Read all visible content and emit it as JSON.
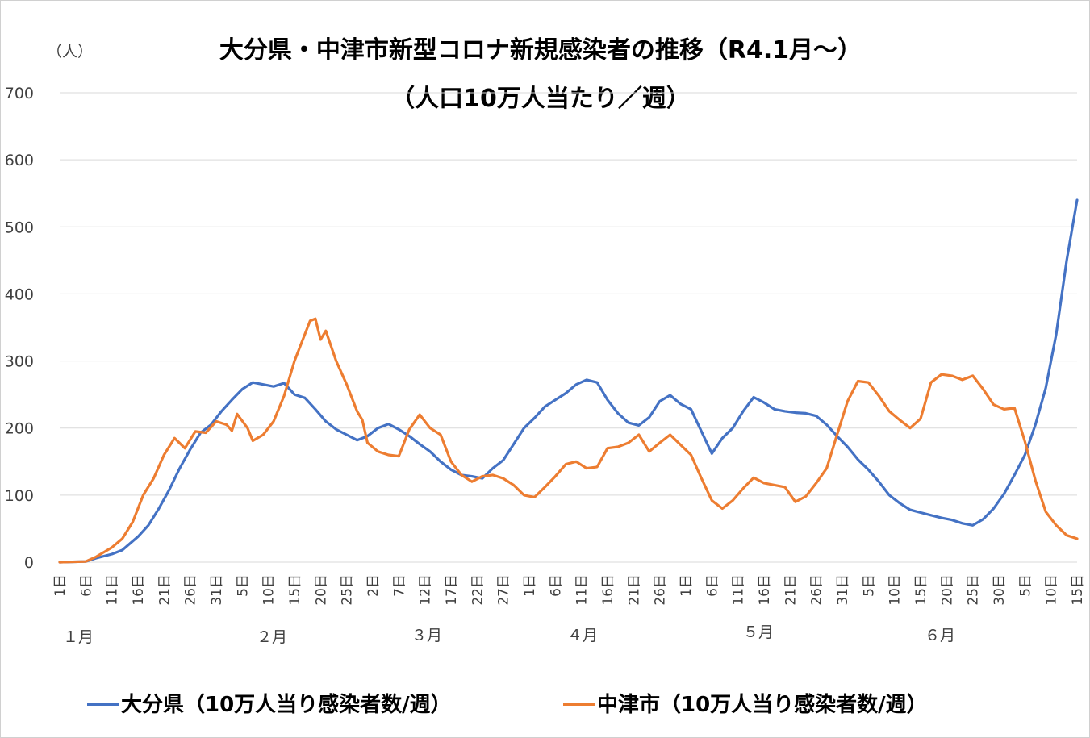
{
  "chart_data": {
    "type": "line",
    "title": "大分県・中津市新型コロナ新規感染者の推移（R4.1月～）",
    "subtitle": "（人口10万人当たり／週）",
    "ylabel": "（人）",
    "xlabel": "",
    "ylim": [
      0,
      700
    ],
    "yticks": [
      "0",
      "100",
      "200",
      "300",
      "400",
      "500",
      "600",
      "700"
    ],
    "xtick_labels": [
      "1日",
      "6日",
      "11日",
      "16日",
      "21日",
      "26日",
      "31日",
      "5日",
      "10日",
      "15日",
      "20日",
      "25日",
      "2日",
      "7日",
      "12日",
      "17日",
      "22日",
      "27日",
      "1日",
      "6日",
      "11日",
      "16日",
      "21日",
      "26日",
      "1日",
      "6日",
      "11日",
      "16日",
      "21日",
      "26日",
      "31日",
      "5日",
      "10日",
      "15日",
      "20日",
      "25日",
      "30日",
      "5日",
      "10日",
      "15日"
    ],
    "month_labels": [
      "１月",
      "２月",
      "３月",
      "４月",
      "５月",
      "６月"
    ],
    "x_start": "2022-01-01",
    "x_end": "2022-07-15",
    "grid": true,
    "legend_position": "bottom",
    "series": [
      {
        "name": "大分県（10万人当り感染者数/週）",
        "color": "#4472C4",
        "points": [
          [
            "2022-01-01",
            0
          ],
          [
            "2022-01-06",
            1
          ],
          [
            "2022-01-08",
            6
          ],
          [
            "2022-01-11",
            12
          ],
          [
            "2022-01-13",
            18
          ],
          [
            "2022-01-16",
            38
          ],
          [
            "2022-01-18",
            55
          ],
          [
            "2022-01-20",
            80
          ],
          [
            "2022-01-22",
            108
          ],
          [
            "2022-01-24",
            140
          ],
          [
            "2022-01-26",
            168
          ],
          [
            "2022-01-28",
            193
          ],
          [
            "2022-01-30",
            205
          ],
          [
            "2022-02-01",
            225
          ],
          [
            "2022-02-03",
            242
          ],
          [
            "2022-02-05",
            258
          ],
          [
            "2022-02-07",
            268
          ],
          [
            "2022-02-09",
            265
          ],
          [
            "2022-02-11",
            262
          ],
          [
            "2022-02-13",
            267
          ],
          [
            "2022-02-15",
            250
          ],
          [
            "2022-02-17",
            245
          ],
          [
            "2022-02-19",
            228
          ],
          [
            "2022-02-21",
            210
          ],
          [
            "2022-02-23",
            198
          ],
          [
            "2022-02-25",
            190
          ],
          [
            "2022-02-27",
            182
          ],
          [
            "2022-03-01",
            188
          ],
          [
            "2022-03-03",
            200
          ],
          [
            "2022-03-05",
            206
          ],
          [
            "2022-03-07",
            198
          ],
          [
            "2022-03-09",
            188
          ],
          [
            "2022-03-11",
            176
          ],
          [
            "2022-03-13",
            165
          ],
          [
            "2022-03-15",
            150
          ],
          [
            "2022-03-17",
            138
          ],
          [
            "2022-03-19",
            130
          ],
          [
            "2022-03-21",
            128
          ],
          [
            "2022-03-23",
            125
          ],
          [
            "2022-03-25",
            140
          ],
          [
            "2022-03-27",
            152
          ],
          [
            "2022-03-29",
            176
          ],
          [
            "2022-03-31",
            200
          ],
          [
            "2022-04-02",
            215
          ],
          [
            "2022-04-04",
            232
          ],
          [
            "2022-04-06",
            242
          ],
          [
            "2022-04-08",
            252
          ],
          [
            "2022-04-10",
            265
          ],
          [
            "2022-04-12",
            272
          ],
          [
            "2022-04-14",
            268
          ],
          [
            "2022-04-16",
            242
          ],
          [
            "2022-04-18",
            222
          ],
          [
            "2022-04-20",
            208
          ],
          [
            "2022-04-22",
            204
          ],
          [
            "2022-04-24",
            216
          ],
          [
            "2022-04-26",
            240
          ],
          [
            "2022-04-28",
            249
          ],
          [
            "2022-04-30",
            236
          ],
          [
            "2022-05-02",
            228
          ],
          [
            "2022-05-04",
            195
          ],
          [
            "2022-05-06",
            162
          ],
          [
            "2022-05-08",
            185
          ],
          [
            "2022-05-10",
            200
          ],
          [
            "2022-05-12",
            225
          ],
          [
            "2022-05-14",
            246
          ],
          [
            "2022-05-16",
            238
          ],
          [
            "2022-05-18",
            228
          ],
          [
            "2022-05-20",
            225
          ],
          [
            "2022-05-22",
            223
          ],
          [
            "2022-05-24",
            222
          ],
          [
            "2022-05-26",
            218
          ],
          [
            "2022-05-28",
            205
          ],
          [
            "2022-05-30",
            188
          ],
          [
            "2022-06-01",
            172
          ],
          [
            "2022-06-03",
            153
          ],
          [
            "2022-06-05",
            138
          ],
          [
            "2022-06-07",
            120
          ],
          [
            "2022-06-09",
            100
          ],
          [
            "2022-06-11",
            88
          ],
          [
            "2022-06-13",
            78
          ],
          [
            "2022-06-15",
            74
          ],
          [
            "2022-06-17",
            70
          ],
          [
            "2022-06-19",
            66
          ],
          [
            "2022-06-21",
            63
          ],
          [
            "2022-06-23",
            58
          ],
          [
            "2022-06-25",
            55
          ],
          [
            "2022-06-27",
            64
          ],
          [
            "2022-06-29",
            80
          ],
          [
            "2022-07-01",
            102
          ],
          [
            "2022-07-03",
            130
          ],
          [
            "2022-07-05",
            160
          ],
          [
            "2022-07-07",
            205
          ],
          [
            "2022-07-09",
            260
          ],
          [
            "2022-07-11",
            340
          ],
          [
            "2022-07-13",
            450
          ],
          [
            "2022-07-15",
            540
          ]
        ]
      },
      {
        "name": "中津市（10万人当り感染者数/週）",
        "color": "#ED7D31",
        "points": [
          [
            "2022-01-01",
            0
          ],
          [
            "2022-01-06",
            1
          ],
          [
            "2022-01-08",
            8
          ],
          [
            "2022-01-11",
            22
          ],
          [
            "2022-01-13",
            35
          ],
          [
            "2022-01-15",
            60
          ],
          [
            "2022-01-17",
            100
          ],
          [
            "2022-01-19",
            125
          ],
          [
            "2022-01-21",
            160
          ],
          [
            "2022-01-23",
            185
          ],
          [
            "2022-01-25",
            170
          ],
          [
            "2022-01-27",
            195
          ],
          [
            "2022-01-29",
            193
          ],
          [
            "2022-01-31",
            210
          ],
          [
            "2022-02-02",
            205
          ],
          [
            "2022-02-03",
            196
          ],
          [
            "2022-02-04",
            221
          ],
          [
            "2022-02-06",
            200
          ],
          [
            "2022-02-07",
            181
          ],
          [
            "2022-02-09",
            190
          ],
          [
            "2022-02-11",
            210
          ],
          [
            "2022-02-13",
            248
          ],
          [
            "2022-02-15",
            300
          ],
          [
            "2022-02-17",
            340
          ],
          [
            "2022-02-18",
            360
          ],
          [
            "2022-02-19",
            363
          ],
          [
            "2022-02-20",
            332
          ],
          [
            "2022-02-21",
            345
          ],
          [
            "2022-02-23",
            300
          ],
          [
            "2022-02-25",
            265
          ],
          [
            "2022-02-27",
            225
          ],
          [
            "2022-02-28",
            212
          ],
          [
            "2022-03-01",
            178
          ],
          [
            "2022-03-03",
            165
          ],
          [
            "2022-03-05",
            160
          ],
          [
            "2022-03-07",
            158
          ],
          [
            "2022-03-09",
            198
          ],
          [
            "2022-03-11",
            220
          ],
          [
            "2022-03-13",
            200
          ],
          [
            "2022-03-15",
            190
          ],
          [
            "2022-03-17",
            150
          ],
          [
            "2022-03-19",
            130
          ],
          [
            "2022-03-21",
            120
          ],
          [
            "2022-03-23",
            128
          ],
          [
            "2022-03-25",
            130
          ],
          [
            "2022-03-27",
            125
          ],
          [
            "2022-03-29",
            115
          ],
          [
            "2022-03-31",
            100
          ],
          [
            "2022-04-02",
            97
          ],
          [
            "2022-04-04",
            112
          ],
          [
            "2022-04-06",
            128
          ],
          [
            "2022-04-08",
            146
          ],
          [
            "2022-04-10",
            150
          ],
          [
            "2022-04-12",
            140
          ],
          [
            "2022-04-14",
            142
          ],
          [
            "2022-04-16",
            170
          ],
          [
            "2022-04-18",
            172
          ],
          [
            "2022-04-20",
            178
          ],
          [
            "2022-04-22",
            190
          ],
          [
            "2022-04-24",
            165
          ],
          [
            "2022-04-26",
            178
          ],
          [
            "2022-04-28",
            190
          ],
          [
            "2022-04-30",
            175
          ],
          [
            "2022-05-02",
            160
          ],
          [
            "2022-05-04",
            125
          ],
          [
            "2022-05-06",
            92
          ],
          [
            "2022-05-08",
            80
          ],
          [
            "2022-05-10",
            92
          ],
          [
            "2022-05-12",
            110
          ],
          [
            "2022-05-14",
            126
          ],
          [
            "2022-05-16",
            118
          ],
          [
            "2022-05-18",
            115
          ],
          [
            "2022-05-20",
            112
          ],
          [
            "2022-05-22",
            90
          ],
          [
            "2022-05-24",
            98
          ],
          [
            "2022-05-26",
            118
          ],
          [
            "2022-05-28",
            140
          ],
          [
            "2022-05-30",
            190
          ],
          [
            "2022-06-01",
            240
          ],
          [
            "2022-06-03",
            270
          ],
          [
            "2022-06-05",
            268
          ],
          [
            "2022-06-07",
            248
          ],
          [
            "2022-06-09",
            225
          ],
          [
            "2022-06-11",
            212
          ],
          [
            "2022-06-13",
            200
          ],
          [
            "2022-06-15",
            214
          ],
          [
            "2022-06-17",
            268
          ],
          [
            "2022-06-19",
            280
          ],
          [
            "2022-06-21",
            278
          ],
          [
            "2022-06-23",
            272
          ],
          [
            "2022-06-25",
            278
          ],
          [
            "2022-06-27",
            258
          ],
          [
            "2022-06-29",
            235
          ],
          [
            "2022-07-01",
            228
          ],
          [
            "2022-07-03",
            230
          ],
          [
            "2022-07-05",
            180
          ],
          [
            "2022-07-07",
            122
          ],
          [
            "2022-07-09",
            75
          ],
          [
            "2022-07-11",
            55
          ],
          [
            "2022-07-13",
            40
          ],
          [
            "2022-07-15",
            35
          ]
        ]
      }
    ]
  },
  "legend": [
    {
      "label": "大分県（10万人当り感染者数/週）",
      "color": "#4472C4"
    },
    {
      "label": "中津市（10万人当り感染者数/週）",
      "color": "#ED7D31"
    }
  ]
}
